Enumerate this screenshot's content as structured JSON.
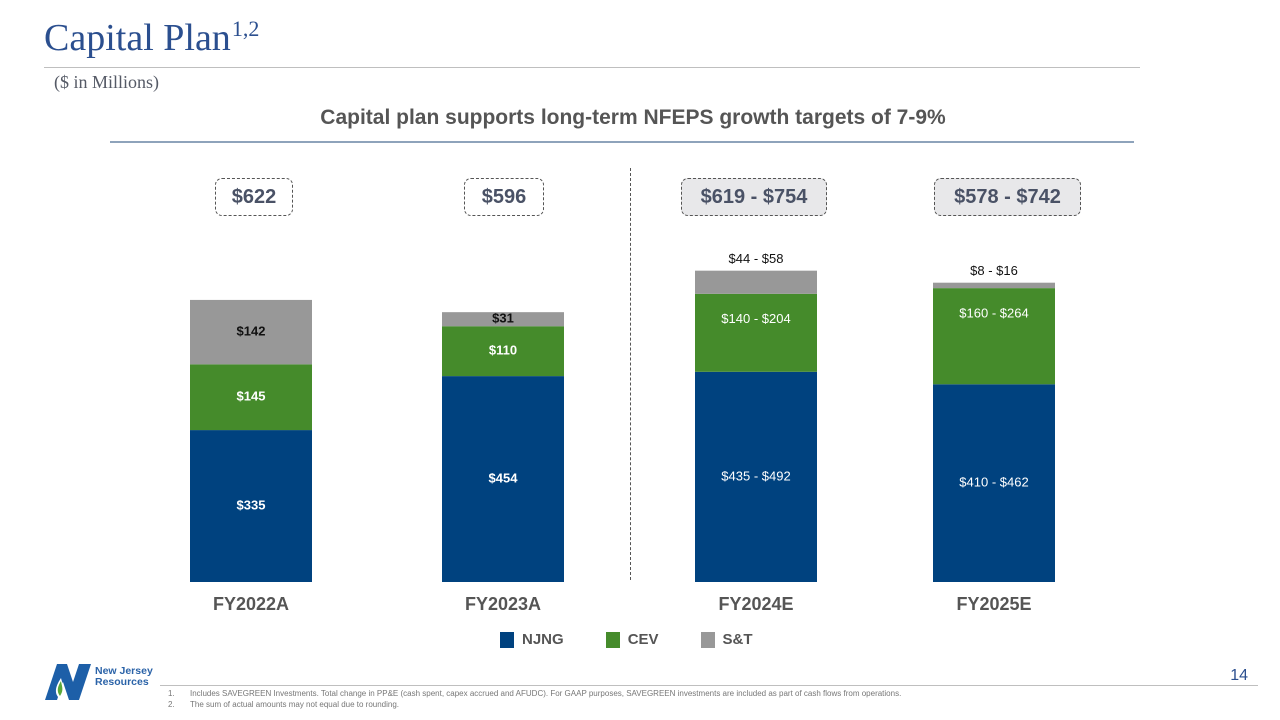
{
  "header": {
    "title": "Capital Plan",
    "title_superscript": "1,2",
    "units": "($ in Millions)",
    "subtitle": "Capital plan supports long-term NFEPS growth targets of 7-9%"
  },
  "totals": [
    {
      "category": "FY2022A",
      "label": "$622",
      "estimate": false
    },
    {
      "category": "FY2023A",
      "label": "$596",
      "estimate": false
    },
    {
      "category": "FY2024E",
      "label": "$619 - $754",
      "estimate": true
    },
    {
      "category": "FY2025E",
      "label": "$578 - $742",
      "estimate": true
    }
  ],
  "colors": {
    "NJNG": "#00427f",
    "CEV": "#458b2b",
    "S&T": "#989898",
    "title": "#2b4f8f"
  },
  "chart_data": {
    "type": "bar",
    "stacked": true,
    "title": "Capital plan supports long-term NFEPS growth targets of 7-9%",
    "xlabel": "",
    "ylabel": "$ in Millions",
    "categories": [
      "FY2022A",
      "FY2023A",
      "FY2024E",
      "FY2025E"
    ],
    "series": [
      {
        "name": "NJNG",
        "values": [
          335,
          454,
          463.5,
          436
        ],
        "labels": [
          "$335",
          "$454",
          "$435 - $492",
          "$410 - $462"
        ],
        "ranges": [
          null,
          null,
          [
            435,
            492
          ],
          [
            410,
            462
          ]
        ]
      },
      {
        "name": "CEV",
        "values": [
          145,
          110,
          172,
          212
        ],
        "labels": [
          "$145",
          "$110",
          "$140 - $204",
          "$160 - $264"
        ],
        "ranges": [
          null,
          null,
          [
            140,
            204
          ],
          [
            160,
            264
          ]
        ]
      },
      {
        "name": "S&T",
        "values": [
          142,
          31,
          51,
          12
        ],
        "labels": [
          "$142",
          "$31",
          "$44 - $58",
          "$8 - $16"
        ],
        "ranges": [
          null,
          null,
          [
            44,
            58
          ],
          [
            8,
            16
          ]
        ]
      }
    ],
    "ylim": [
      0,
      700
    ],
    "grid": false,
    "legend": "bottom-center",
    "annotations": [
      "Actuals vs. estimates separated by dashed divider"
    ]
  },
  "legend": [
    {
      "name": "NJNG",
      "label": "NJNG"
    },
    {
      "name": "CEV",
      "label": "CEV"
    },
    {
      "name": "S&T",
      "label": "S&T"
    }
  ],
  "footer": {
    "logo_line1": "New Jersey",
    "logo_line2": "Resources",
    "page_number": "14",
    "footnotes": [
      {
        "num": "1.",
        "text": "Includes SAVEGREEN  Investments. Total change in PP&E (cash spent, capex accrued and AFUDC). For GAAP purposes, SAVEGREEN  investments are included as part of cash flows from operations."
      },
      {
        "num": "2.",
        "text": "The sum of actual amounts may not equal due to rounding."
      }
    ]
  }
}
